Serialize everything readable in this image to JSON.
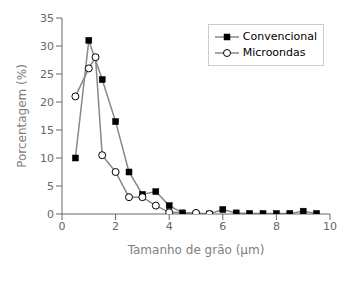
{
  "chart_data": {
    "type": "line",
    "xlabel": "Tamanho de grão (μm)",
    "ylabel": "Porcentagem (%)",
    "xlim": [
      0,
      10
    ],
    "ylim": [
      0,
      35
    ],
    "xticks": [
      0,
      2,
      4,
      6,
      8,
      10
    ],
    "yticks": [
      0,
      5,
      10,
      15,
      20,
      25,
      30,
      35
    ],
    "grid": false,
    "legend": "upper right",
    "series": [
      {
        "name": "Convencional",
        "color": "#888888",
        "marker": "square",
        "x": [
          0.5,
          1.0,
          1.5,
          2.0,
          2.5,
          3.0,
          3.5,
          4.0,
          4.5,
          5.0,
          5.5,
          6.0,
          6.5,
          7.0,
          7.5,
          8.0,
          8.5,
          9.0,
          9.5
        ],
        "values": [
          10.0,
          31.0,
          24.0,
          16.5,
          7.5,
          3.5,
          4.0,
          1.5,
          0.2,
          0.0,
          0.0,
          0.8,
          0.2,
          0.1,
          0.1,
          0.1,
          0.1,
          0.5,
          0.1
        ]
      },
      {
        "name": "Microondas",
        "color": "#888888",
        "marker": "circle",
        "x": [
          0.5,
          1.0,
          1.25,
          1.5,
          2.0,
          2.5,
          3.0,
          3.5,
          4.0,
          5.0,
          5.5
        ],
        "values": [
          21.0,
          26.0,
          28.0,
          10.5,
          7.5,
          3.0,
          3.0,
          1.5,
          0.3,
          0.2,
          0.0
        ]
      }
    ]
  }
}
